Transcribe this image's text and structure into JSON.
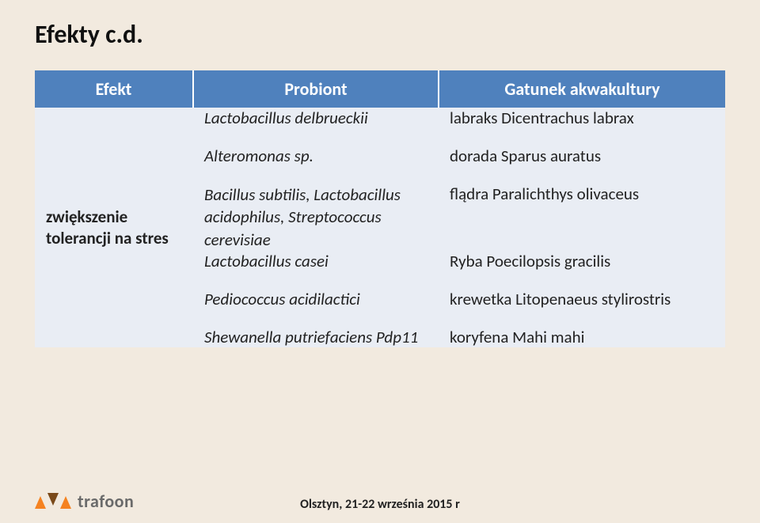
{
  "slide": {
    "title": "Efekty c.d.",
    "background_color": "#f2eadf"
  },
  "table": {
    "header_bg": "#4f81bd",
    "header_fg": "#ffffff",
    "body_bg": "#e9edf4",
    "columns": {
      "effect": "Efekt",
      "probiont": "Probiont",
      "species": "Gatunek akwakultury"
    },
    "row_label_line1": "zwiększenie",
    "row_label_line2": "tolerancji na stres",
    "rows": [
      {
        "probiont": "Lactobacillus delbrueckii",
        "species": "labraks Dicentrachus labrax"
      },
      {
        "probiont": "Alteromonas sp.",
        "species": "dorada Sparus auratus"
      },
      {
        "probiont": "Bacillus subtilis, Lactobacillus acidophilus, Streptococcus cerevisiae",
        "species": "flądra Paralichthys olivaceus"
      },
      {
        "probiont": "Lactobacillus casei",
        "species": "Ryba Poecilopsis gracilis"
      },
      {
        "probiont": "Pediococcus acidilactici",
        "species": "krewetka Litopenaeus stylirostris"
      },
      {
        "probiont": "Shewanella putriefaciens Pdp11",
        "species": "koryfena Mahi mahi"
      }
    ]
  },
  "footer": {
    "logo_text": "trafoon",
    "caption": "Olsztyn, 21-22 września 2015 r",
    "logo_colors": [
      "#f58220",
      "#7a4a1a",
      "#f58220"
    ]
  }
}
